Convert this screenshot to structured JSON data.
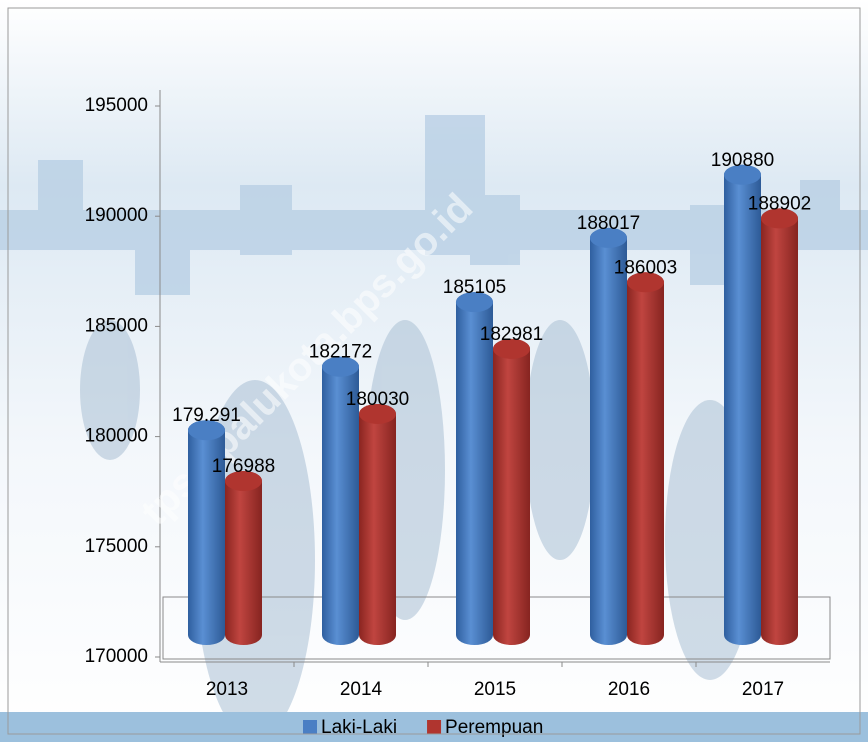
{
  "chart_data": {
    "type": "bar3d",
    "categories": [
      "2013",
      "2014",
      "2015",
      "2016",
      "2017"
    ],
    "series": [
      {
        "name": "Laki-Laki",
        "color": "#4a7fc4",
        "values": [
          179291,
          182172,
          185105,
          188017,
          190880
        ],
        "value_labels": [
          "179.291",
          "182172",
          "185105",
          "188017",
          "190880"
        ]
      },
      {
        "name": "Perempuan",
        "color": "#b0352f",
        "values": [
          176988,
          180030,
          182981,
          186003,
          188902
        ]
      }
    ],
    "ylim": [
      170000,
      195000
    ],
    "yticks": [
      170000,
      175000,
      180000,
      185000,
      190000,
      195000
    ],
    "legend": "bottom",
    "watermark": "tps://palukota.bps.go.id"
  }
}
